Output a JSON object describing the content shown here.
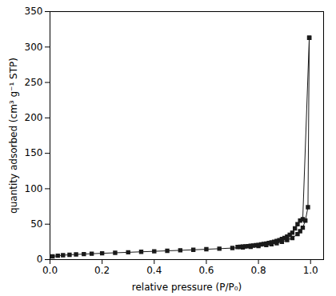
{
  "chart_data": {
    "type": "line",
    "xlabel": "relative pressure (P/P₀)",
    "ylabel": "quantity adsorbed (cm³ g⁻¹ STP)",
    "series": [
      {
        "color": "#1a1a1a",
        "marker": "square",
        "x": [
          0.01,
          0.03,
          0.05,
          0.075,
          0.1,
          0.13,
          0.16,
          0.2,
          0.25,
          0.3,
          0.35,
          0.4,
          0.45,
          0.5,
          0.55,
          0.6,
          0.65,
          0.7,
          0.74,
          0.77,
          0.8,
          0.83,
          0.85,
          0.87,
          0.89,
          0.91,
          0.93,
          0.95,
          0.96,
          0.97,
          0.98,
          0.99,
          0.995
        ],
        "values": [
          4.5,
          5.5,
          6.2,
          6.8,
          7.3,
          7.8,
          8.3,
          8.9,
          9.6,
          10.3,
          11.0,
          11.7,
          12.4,
          13.1,
          13.8,
          14.6,
          15.4,
          16.3,
          17.2,
          18.1,
          19.2,
          20.5,
          21.8,
          23.2,
          25.0,
          27.5,
          30.5,
          36.0,
          40.0,
          45.0,
          55.0,
          74.0,
          313.0
        ]
      },
      {
        "color": "#1a1a1a",
        "marker": "square",
        "x": [
          0.995,
          0.97,
          0.96,
          0.95,
          0.94,
          0.93,
          0.92,
          0.91,
          0.9,
          0.89,
          0.88,
          0.87,
          0.86,
          0.85,
          0.84,
          0.83,
          0.82,
          0.81,
          0.8,
          0.79,
          0.78,
          0.77,
          0.76,
          0.75,
          0.74,
          0.73,
          0.72
        ],
        "values": [
          313.0,
          57.0,
          55.0,
          50.0,
          44.0,
          38.0,
          35.0,
          32.5,
          30.5,
          29.0,
          27.5,
          26.2,
          25.2,
          24.2,
          23.5,
          22.7,
          22.0,
          21.4,
          20.8,
          20.3,
          19.8,
          19.4,
          19.0,
          18.7,
          18.4,
          18.1,
          17.8
        ]
      }
    ],
    "xlim": [
      0.0,
      1.05
    ],
    "xticks": [
      {
        "value": 0,
        "label": "0.0"
      },
      0.2,
      0.4,
      0.6,
      0.8,
      {
        "value": 1,
        "label": "1.0"
      }
    ],
    "ylim": [
      0,
      350
    ],
    "yticks": [
      0,
      50,
      100,
      150,
      200,
      250,
      300,
      350
    ],
    "grid": false
  }
}
